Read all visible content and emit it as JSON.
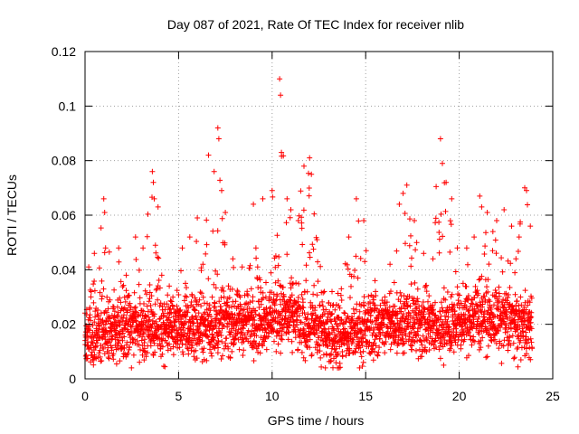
{
  "chart_data": {
    "type": "scatter",
    "title": "Day 087 of 2021, Rate Of TEC Index for receiver nlib",
    "xlabel": "GPS time / hours",
    "ylabel": "ROTI / TECUs",
    "xlim": [
      0,
      25
    ],
    "ylim": [
      0,
      0.12
    ],
    "xticks": [
      0,
      5,
      10,
      15,
      20,
      25
    ],
    "xtick_labels": [
      "0",
      "5",
      "10",
      "15",
      "20",
      "25"
    ],
    "yticks": [
      0,
      0.02,
      0.04,
      0.06,
      0.08,
      0.1,
      0.12
    ],
    "ytick_labels": [
      "0",
      "0.02",
      "0.04",
      "0.06",
      "0.08",
      "0.1",
      "0.12"
    ],
    "grid": true,
    "marker": "+",
    "color": "#ff0000",
    "series": [
      {
        "name": "ROTI",
        "x_range": [
          0,
          23.9
        ],
        "x_step": 0.008,
        "baseline_profile": [
          [
            0,
            0.015
          ],
          [
            1,
            0.017
          ],
          [
            3,
            0.019
          ],
          [
            5,
            0.018
          ],
          [
            7,
            0.019
          ],
          [
            9,
            0.021
          ],
          [
            10.5,
            0.023
          ],
          [
            12,
            0.019
          ],
          [
            13.5,
            0.015
          ],
          [
            15,
            0.018
          ],
          [
            16.5,
            0.02
          ],
          [
            18,
            0.02
          ],
          [
            19,
            0.019
          ],
          [
            21,
            0.022
          ],
          [
            22.5,
            0.021
          ],
          [
            23.9,
            0.018
          ]
        ],
        "peak_points": [
          [
            0.2,
            0.041
          ],
          [
            0.5,
            0.046
          ],
          [
            1.0,
            0.066
          ],
          [
            1.05,
            0.061
          ],
          [
            1.1,
            0.048
          ],
          [
            1.8,
            0.048
          ],
          [
            2.2,
            0.038
          ],
          [
            2.7,
            0.052
          ],
          [
            3.1,
            0.048
          ],
          [
            3.6,
            0.076
          ],
          [
            3.65,
            0.072
          ],
          [
            3.7,
            0.066
          ],
          [
            3.9,
            0.063
          ],
          [
            4.1,
            0.038
          ],
          [
            4.5,
            0.034
          ],
          [
            5.2,
            0.048
          ],
          [
            5.6,
            0.052
          ],
          [
            6.0,
            0.059
          ],
          [
            6.3,
            0.042
          ],
          [
            6.6,
            0.082
          ],
          [
            6.9,
            0.076
          ],
          [
            7.1,
            0.092
          ],
          [
            7.15,
            0.088
          ],
          [
            7.3,
            0.069
          ],
          [
            7.5,
            0.061
          ],
          [
            7.9,
            0.044
          ],
          [
            8.4,
            0.041
          ],
          [
            9.0,
            0.064
          ],
          [
            9.5,
            0.066
          ],
          [
            10.0,
            0.069
          ],
          [
            10.4,
            0.11
          ],
          [
            10.45,
            0.104
          ],
          [
            10.5,
            0.083
          ],
          [
            10.8,
            0.066
          ],
          [
            11.0,
            0.062
          ],
          [
            11.4,
            0.058
          ],
          [
            11.7,
            0.078
          ],
          [
            12.0,
            0.081
          ],
          [
            12.1,
            0.075
          ],
          [
            12.4,
            0.051
          ],
          [
            13.2,
            0.032
          ],
          [
            13.7,
            0.033
          ],
          [
            14.1,
            0.052
          ],
          [
            14.5,
            0.066
          ],
          [
            14.9,
            0.058
          ],
          [
            15.5,
            0.036
          ],
          [
            16.3,
            0.042
          ],
          [
            16.8,
            0.064
          ],
          [
            17.0,
            0.068
          ],
          [
            17.2,
            0.071
          ],
          [
            17.6,
            0.058
          ],
          [
            18.1,
            0.046
          ],
          [
            18.6,
            0.044
          ],
          [
            19.0,
            0.088
          ],
          [
            19.1,
            0.079
          ],
          [
            19.3,
            0.072
          ],
          [
            19.6,
            0.066
          ],
          [
            19.9,
            0.048
          ],
          [
            20.4,
            0.048
          ],
          [
            20.8,
            0.052
          ],
          [
            21.1,
            0.067
          ],
          [
            21.2,
            0.063
          ],
          [
            21.5,
            0.061
          ],
          [
            21.8,
            0.054
          ],
          [
            22.0,
            0.058
          ],
          [
            22.4,
            0.062
          ],
          [
            22.8,
            0.056
          ],
          [
            23.2,
            0.052
          ],
          [
            23.5,
            0.07
          ],
          [
            23.6,
            0.069
          ],
          [
            23.8,
            0.056
          ]
        ]
      }
    ]
  }
}
